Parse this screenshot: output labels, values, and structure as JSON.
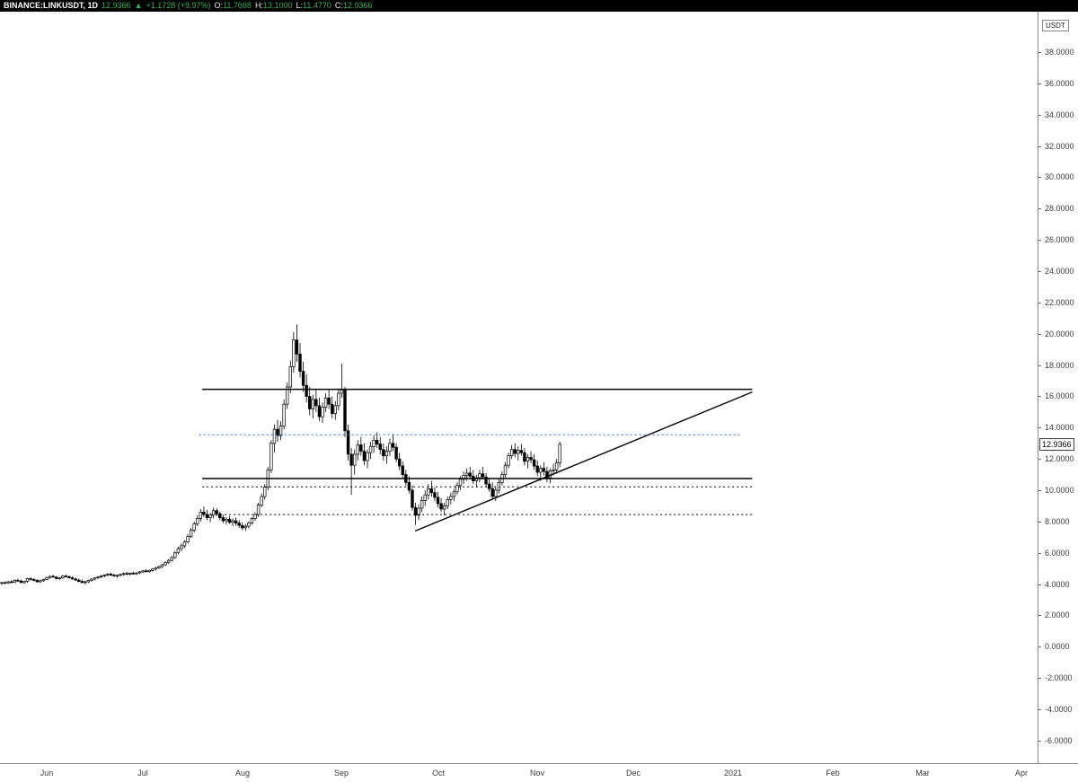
{
  "colors": {
    "topbar_bg": "#000000",
    "symbol_text": "#ffffff",
    "up_green": "#35b14e",
    "candle_black": "#000000",
    "drawing_black": "#000000",
    "drawing_blue": "#2962ff",
    "axis_text": "#3a3a3a",
    "axis_line": "#8a8a8a",
    "chart_bg": "#ffffff"
  },
  "topbar": {
    "symbol": "BINANCE:LINKUSDT, 1D",
    "last_price": "12.9366",
    "change_arrow": "▲",
    "change": "+1.1728 (+9.97%)",
    "o_label": "O:",
    "o_value": "11.7668",
    "h_label": "H:",
    "h_value": "13.1000",
    "l_label": "L:",
    "l_value": "11.4770",
    "c_label": "C:",
    "c_value": "12.9366"
  },
  "axis": {
    "unit_label": "USDT",
    "price_ticks": [
      "38.0000",
      "36.0000",
      "34.0000",
      "32.0000",
      "30.0000",
      "28.0000",
      "26.0000",
      "24.0000",
      "22.0000",
      "20.0000",
      "18.0000",
      "16.0000",
      "14.0000",
      "12.0000",
      "10.0000",
      "8.0000",
      "6.0000",
      "4.0000",
      "2.0000",
      "0.0000",
      "-2.0000",
      "-4.0000",
      "-6.0000"
    ],
    "current_price": 12.9366,
    "current_price_label": "12.9366",
    "months": [
      {
        "label": "Jun",
        "index": 14
      },
      {
        "label": "Jul",
        "index": 44
      },
      {
        "label": "Aug",
        "index": 75
      },
      {
        "label": "Sep",
        "index": 106
      },
      {
        "label": "Oct",
        "index": 136
      },
      {
        "label": "Nov",
        "index": 167
      },
      {
        "label": "Dec",
        "index": 197
      },
      {
        "label": "2021",
        "index": 228
      },
      {
        "label": "Feb",
        "index": 259
      },
      {
        "label": "Mar",
        "index": 287
      },
      {
        "label": "Apr",
        "index": 318
      }
    ]
  },
  "chart_data": {
    "type": "candlestick",
    "title": "BINANCE:LINKUSDT 1D",
    "ylabel": "USDT",
    "y_range_visible": [
      -7.0,
      39.5
    ],
    "grid": false,
    "ohlc": [
      [
        4.05,
        4.15,
        3.95,
        4.1
      ],
      [
        4.1,
        4.18,
        4.02,
        4.08
      ],
      [
        4.08,
        4.2,
        4.0,
        4.15
      ],
      [
        4.15,
        4.25,
        4.05,
        4.12
      ],
      [
        4.12,
        4.3,
        4.08,
        4.25
      ],
      [
        4.25,
        4.35,
        4.15,
        4.2
      ],
      [
        4.2,
        4.28,
        4.05,
        4.1
      ],
      [
        4.1,
        4.22,
        4.02,
        4.18
      ],
      [
        4.18,
        4.4,
        4.1,
        4.35
      ],
      [
        4.35,
        4.45,
        4.22,
        4.3
      ],
      [
        4.3,
        4.38,
        4.18,
        4.24
      ],
      [
        4.24,
        4.32,
        4.1,
        4.15
      ],
      [
        4.15,
        4.28,
        4.08,
        4.22
      ],
      [
        4.22,
        4.35,
        4.15,
        4.3
      ],
      [
        4.3,
        4.48,
        4.25,
        4.42
      ],
      [
        4.42,
        4.55,
        4.35,
        4.5
      ],
      [
        4.5,
        4.6,
        4.4,
        4.45
      ],
      [
        4.45,
        4.52,
        4.3,
        4.36
      ],
      [
        4.36,
        4.44,
        4.26,
        4.4
      ],
      [
        4.4,
        4.58,
        4.34,
        4.52
      ],
      [
        4.52,
        4.62,
        4.44,
        4.48
      ],
      [
        4.48,
        4.55,
        4.35,
        4.4
      ],
      [
        4.4,
        4.5,
        4.28,
        4.33
      ],
      [
        4.33,
        4.42,
        4.2,
        4.26
      ],
      [
        4.26,
        4.35,
        4.12,
        4.18
      ],
      [
        4.18,
        4.3,
        4.05,
        4.1
      ],
      [
        4.1,
        4.22,
        3.98,
        4.15
      ],
      [
        4.15,
        4.28,
        4.08,
        4.24
      ],
      [
        4.24,
        4.38,
        4.16,
        4.32
      ],
      [
        4.32,
        4.45,
        4.24,
        4.4
      ],
      [
        4.4,
        4.52,
        4.32,
        4.46
      ],
      [
        4.46,
        4.58,
        4.38,
        4.52
      ],
      [
        4.52,
        4.64,
        4.44,
        4.58
      ],
      [
        4.58,
        4.7,
        4.5,
        4.64
      ],
      [
        4.64,
        4.72,
        4.52,
        4.58
      ],
      [
        4.58,
        4.66,
        4.46,
        4.52
      ],
      [
        4.52,
        4.62,
        4.42,
        4.56
      ],
      [
        4.56,
        4.68,
        4.48,
        4.62
      ],
      [
        4.62,
        4.74,
        4.54,
        4.68
      ],
      [
        4.68,
        4.78,
        4.58,
        4.64
      ],
      [
        4.64,
        4.74,
        4.56,
        4.7
      ],
      [
        4.7,
        4.8,
        4.6,
        4.66
      ],
      [
        4.66,
        4.76,
        4.58,
        4.72
      ],
      [
        4.72,
        4.84,
        4.64,
        4.78
      ],
      [
        4.78,
        4.9,
        4.7,
        4.85
      ],
      [
        4.85,
        4.95,
        4.75,
        4.8
      ],
      [
        4.8,
        4.92,
        4.72,
        4.88
      ],
      [
        4.88,
        5.02,
        4.8,
        4.96
      ],
      [
        4.96,
        5.1,
        4.88,
        5.04
      ],
      [
        5.04,
        5.2,
        4.96,
        5.12
      ],
      [
        5.12,
        5.3,
        5.04,
        5.24
      ],
      [
        5.24,
        5.45,
        5.16,
        5.38
      ],
      [
        5.38,
        5.6,
        5.3,
        5.52
      ],
      [
        5.52,
        5.8,
        5.44,
        5.7
      ],
      [
        5.7,
        6.1,
        5.62,
        6.0
      ],
      [
        6.0,
        6.4,
        5.9,
        6.28
      ],
      [
        6.28,
        6.6,
        6.1,
        6.45
      ],
      [
        6.45,
        6.8,
        6.3,
        6.7
      ],
      [
        6.7,
        7.2,
        6.6,
        7.05
      ],
      [
        7.05,
        7.6,
        6.95,
        7.45
      ],
      [
        7.45,
        8.0,
        7.3,
        7.85
      ],
      [
        7.85,
        8.4,
        7.7,
        8.2
      ],
      [
        8.2,
        8.8,
        8.0,
        8.6
      ],
      [
        8.6,
        8.95,
        8.3,
        8.45
      ],
      [
        8.45,
        8.75,
        8.1,
        8.25
      ],
      [
        8.25,
        8.55,
        7.95,
        8.4
      ],
      [
        8.4,
        8.9,
        8.2,
        8.7
      ],
      [
        8.7,
        8.85,
        8.35,
        8.5
      ],
      [
        8.5,
        8.65,
        8.1,
        8.25
      ],
      [
        8.25,
        8.45,
        7.9,
        8.05
      ],
      [
        8.05,
        8.3,
        7.8,
        8.15
      ],
      [
        8.15,
        8.35,
        7.85,
        7.95
      ],
      [
        7.95,
        8.2,
        7.7,
        8.05
      ],
      [
        8.05,
        8.25,
        7.75,
        7.9
      ],
      [
        7.9,
        8.1,
        7.6,
        7.75
      ],
      [
        7.75,
        7.95,
        7.45,
        7.6
      ],
      [
        7.6,
        7.85,
        7.4,
        7.7
      ],
      [
        7.7,
        8.0,
        7.55,
        7.9
      ],
      [
        7.9,
        8.3,
        7.8,
        8.2
      ],
      [
        8.2,
        8.6,
        8.05,
        8.45
      ],
      [
        8.45,
        9.2,
        8.3,
        9.05
      ],
      [
        9.05,
        9.8,
        8.9,
        9.6
      ],
      [
        9.6,
        10.4,
        9.4,
        10.2
      ],
      [
        10.2,
        11.5,
        10.0,
        11.3
      ],
      [
        11.3,
        13.2,
        11.1,
        13.0
      ],
      [
        13.0,
        14.2,
        12.4,
        13.9
      ],
      [
        13.9,
        14.5,
        13.1,
        13.5
      ],
      [
        13.5,
        14.4,
        13.2,
        14.1
      ],
      [
        14.1,
        15.8,
        13.9,
        15.5
      ],
      [
        15.5,
        16.9,
        15.2,
        16.6
      ],
      [
        16.6,
        18.3,
        16.2,
        17.9
      ],
      [
        17.9,
        20.1,
        17.5,
        19.6
      ],
      [
        19.6,
        20.6,
        18.2,
        18.7
      ],
      [
        18.7,
        19.4,
        17.2,
        17.6
      ],
      [
        17.6,
        18.2,
        16.3,
        16.7
      ],
      [
        16.7,
        17.4,
        15.6,
        16.0
      ],
      [
        16.0,
        16.6,
        14.8,
        15.2
      ],
      [
        15.2,
        16.1,
        14.6,
        15.8
      ],
      [
        15.8,
        16.4,
        15.0,
        15.4
      ],
      [
        15.4,
        15.9,
        14.4,
        14.7
      ],
      [
        14.7,
        15.6,
        14.3,
        15.3
      ],
      [
        15.3,
        16.2,
        15.0,
        15.9
      ],
      [
        15.9,
        16.5,
        15.2,
        15.5
      ],
      [
        15.5,
        16.0,
        14.6,
        14.9
      ],
      [
        14.9,
        15.7,
        14.5,
        15.4
      ],
      [
        15.4,
        16.5,
        15.1,
        16.2
      ],
      [
        16.2,
        18.1,
        15.9,
        16.4
      ],
      [
        16.4,
        16.6,
        13.4,
        13.8
      ],
      [
        13.8,
        14.2,
        11.9,
        12.3
      ],
      [
        12.3,
        12.7,
        9.7,
        11.6
      ],
      [
        11.6,
        12.6,
        11.0,
        12.3
      ],
      [
        12.3,
        13.2,
        11.9,
        12.9
      ],
      [
        12.9,
        13.4,
        12.2,
        12.5
      ],
      [
        12.5,
        13.0,
        11.6,
        11.9
      ],
      [
        11.9,
        12.6,
        11.4,
        12.4
      ],
      [
        12.4,
        13.1,
        12.0,
        12.8
      ],
      [
        12.8,
        13.5,
        12.4,
        13.2
      ],
      [
        13.2,
        13.7,
        12.7,
        12.95
      ],
      [
        12.95,
        13.4,
        12.3,
        12.6
      ],
      [
        12.6,
        13.0,
        11.9,
        12.2
      ],
      [
        12.2,
        12.8,
        11.7,
        12.5
      ],
      [
        12.5,
        13.3,
        12.2,
        13.0
      ],
      [
        13.0,
        13.6,
        12.5,
        12.75
      ],
      [
        12.75,
        13.0,
        11.8,
        12.0
      ],
      [
        12.0,
        12.4,
        11.3,
        11.55
      ],
      [
        11.55,
        11.85,
        10.8,
        11.0
      ],
      [
        11.0,
        11.3,
        10.3,
        10.5
      ],
      [
        10.5,
        10.9,
        9.8,
        10.0
      ],
      [
        10.0,
        10.3,
        8.7,
        8.9
      ],
      [
        8.9,
        9.2,
        7.78,
        8.4
      ],
      [
        8.4,
        9.1,
        8.1,
        8.85
      ],
      [
        8.85,
        9.6,
        8.6,
        9.35
      ],
      [
        9.35,
        10.0,
        9.0,
        9.7
      ],
      [
        9.7,
        10.4,
        9.4,
        10.1
      ],
      [
        10.1,
        10.6,
        9.6,
        9.85
      ],
      [
        9.85,
        10.2,
        9.3,
        9.55
      ],
      [
        9.55,
        9.9,
        8.9,
        9.15
      ],
      [
        9.15,
        9.5,
        8.6,
        8.8
      ],
      [
        8.8,
        9.2,
        8.4,
        9.0
      ],
      [
        9.0,
        9.6,
        8.8,
        9.4
      ],
      [
        9.4,
        9.85,
        9.1,
        9.6
      ],
      [
        9.6,
        10.1,
        9.3,
        9.9
      ],
      [
        9.9,
        10.5,
        9.7,
        10.3
      ],
      [
        10.3,
        10.9,
        10.0,
        10.7
      ],
      [
        10.7,
        11.2,
        10.4,
        10.95
      ],
      [
        10.95,
        11.4,
        10.6,
        11.1
      ],
      [
        11.1,
        11.5,
        10.7,
        10.9
      ],
      [
        10.9,
        11.3,
        10.4,
        10.6
      ],
      [
        10.6,
        11.0,
        10.2,
        10.8
      ],
      [
        10.8,
        11.3,
        10.5,
        11.05
      ],
      [
        11.05,
        11.5,
        10.7,
        10.85
      ],
      [
        10.85,
        11.1,
        10.2,
        10.4
      ],
      [
        10.4,
        10.8,
        9.9,
        10.1
      ],
      [
        10.1,
        10.5,
        9.4,
        9.6
      ],
      [
        9.6,
        10.2,
        9.3,
        10.0
      ],
      [
        10.0,
        10.7,
        9.8,
        10.5
      ],
      [
        10.5,
        11.2,
        10.3,
        11.0
      ],
      [
        11.0,
        11.8,
        10.8,
        11.6
      ],
      [
        11.6,
        12.4,
        11.4,
        12.2
      ],
      [
        12.2,
        12.9,
        12.0,
        12.6
      ],
      [
        12.6,
        13.0,
        12.1,
        12.35
      ],
      [
        12.35,
        12.8,
        11.9,
        12.55
      ],
      [
        12.55,
        12.95,
        12.2,
        12.4
      ],
      [
        12.4,
        12.7,
        11.6,
        11.85
      ],
      [
        11.85,
        12.3,
        11.4,
        12.1
      ],
      [
        12.1,
        12.5,
        11.7,
        11.95
      ],
      [
        11.95,
        12.3,
        11.3,
        11.55
      ],
      [
        11.55,
        11.9,
        10.9,
        11.15
      ],
      [
        11.15,
        11.6,
        10.6,
        11.4
      ],
      [
        11.4,
        11.8,
        10.95,
        11.2
      ],
      [
        11.2,
        11.5,
        10.5,
        10.8
      ],
      [
        10.8,
        11.4,
        10.45,
        11.25
      ],
      [
        11.25,
        11.7,
        10.95,
        11.3
      ],
      [
        11.3,
        12.0,
        11.05,
        11.77
      ],
      [
        11.7668,
        13.1,
        11.477,
        12.9366
      ]
    ],
    "drawings": [
      {
        "name": "resistance-line-upper",
        "type": "hline",
        "price": 16.45,
        "i1": 62.5,
        "i2": 234,
        "style": "solid",
        "color": "#000000",
        "width": 1.5
      },
      {
        "name": "support-line-lower",
        "type": "hline",
        "price": 10.75,
        "i1": 62.5,
        "i2": 234,
        "style": "solid",
        "color": "#000000",
        "width": 1.5
      },
      {
        "name": "dotted-level-blue",
        "type": "hline",
        "price": 13.55,
        "i1": 61.5,
        "i2": 230.5,
        "style": "dotted",
        "color": "#2962ff",
        "width": 1
      },
      {
        "name": "dotted-level-mid",
        "type": "hline",
        "price": 10.22,
        "i1": 62.5,
        "i2": 234,
        "style": "dotted",
        "color": "#000000",
        "width": 1
      },
      {
        "name": "dotted-level-low",
        "type": "hline",
        "price": 8.45,
        "i1": 62.5,
        "i2": 234,
        "style": "dotted",
        "color": "#000000",
        "width": 1
      },
      {
        "name": "ascending-trendline",
        "type": "trendline",
        "i1": 128.9,
        "p1": 7.4,
        "i2": 234,
        "p2": 16.28,
        "style": "solid",
        "color": "#000000",
        "width": 1.4
      }
    ]
  }
}
